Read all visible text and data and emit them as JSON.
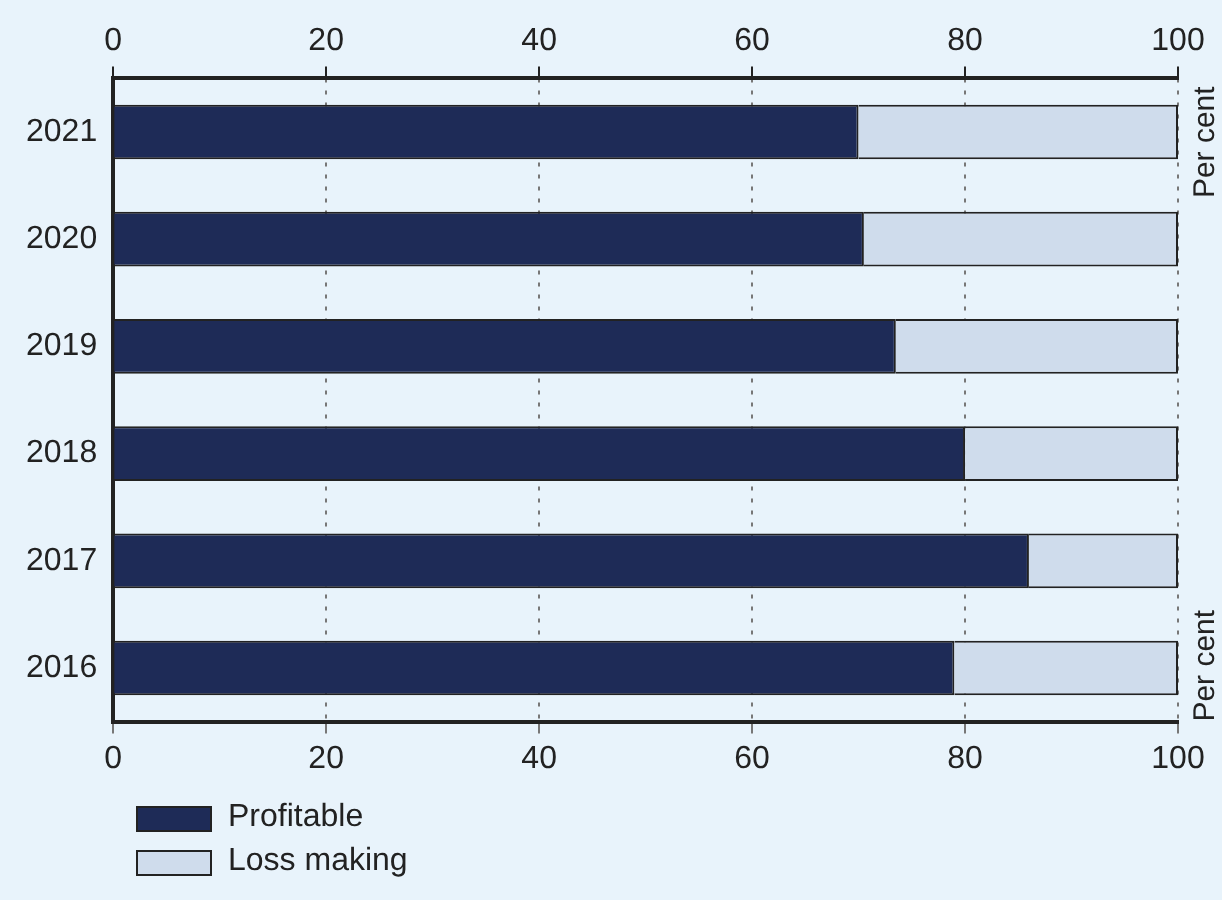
{
  "chart_data": {
    "type": "bar",
    "orientation": "horizontal",
    "stacked": true,
    "categories": [
      "2021",
      "2020",
      "2019",
      "2018",
      "2017",
      "2016"
    ],
    "series": [
      {
        "name": "Profitable",
        "color": "#1e2b57",
        "values": [
          70,
          70.5,
          73.5,
          80,
          86,
          79
        ]
      },
      {
        "name": "Loss making",
        "color": "#cfdcec",
        "values": [
          30,
          29.5,
          26.5,
          20,
          14,
          21
        ]
      }
    ],
    "xlim": [
      0,
      100
    ],
    "xticks": [
      0,
      20,
      40,
      60,
      80,
      100
    ],
    "x2lim": [
      0,
      100
    ],
    "x2ticks": [
      0,
      20,
      40,
      60,
      80,
      100
    ],
    "annotations": [
      "Per cent",
      "Per cent"
    ],
    "grid": "x",
    "legend": "bottom left"
  }
}
